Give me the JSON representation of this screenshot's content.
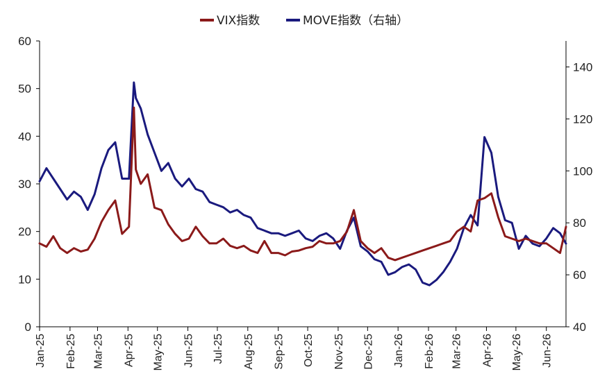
{
  "chart_data": {
    "type": "line",
    "title": "",
    "xlabel": "",
    "ylabel": "",
    "legend_position": "top-center",
    "grid": false,
    "colors": {
      "VIX指数": "#8B1A1A",
      "MOVE指数（右轴）": "#1A1A7E"
    },
    "x_categories": [
      "Jan-25",
      "Feb-25",
      "Mar-25",
      "Apr-25",
      "May-25",
      "Jun-25",
      "Jul-25",
      "Aug-25",
      "Sep-25",
      "Oct-25",
      "Nov-25",
      "Dec-25",
      "Jan-26",
      "Feb-26",
      "Mar-26",
      "Apr-26",
      "May-26",
      "Jun-26"
    ],
    "x_range": [
      "2025-01-01",
      "2026-06-21"
    ],
    "left_axis": {
      "min": 0,
      "max": 60,
      "ticks": [
        0,
        10,
        20,
        30,
        40,
        50,
        60
      ]
    },
    "right_axis": {
      "min": 40,
      "max": 150,
      "ticks": [
        40,
        60,
        80,
        100,
        120,
        140
      ]
    },
    "series": [
      {
        "name": "VIX指数",
        "axis": "left",
        "x": [
          "2025-01-01",
          "2025-01-08",
          "2025-01-15",
          "2025-01-22",
          "2025-01-29",
          "2025-02-05",
          "2025-02-12",
          "2025-02-19",
          "2025-02-26",
          "2025-03-05",
          "2025-03-12",
          "2025-03-19",
          "2025-03-26",
          "2025-04-02",
          "2025-04-07",
          "2025-04-09",
          "2025-04-14",
          "2025-04-21",
          "2025-04-28",
          "2025-05-05",
          "2025-05-12",
          "2025-05-19",
          "2025-05-26",
          "2025-06-02",
          "2025-06-09",
          "2025-06-16",
          "2025-06-23",
          "2025-06-30",
          "2025-07-07",
          "2025-07-14",
          "2025-07-21",
          "2025-07-28",
          "2025-08-04",
          "2025-08-11",
          "2025-08-18",
          "2025-08-25",
          "2025-09-01",
          "2025-09-08",
          "2025-09-15",
          "2025-09-22",
          "2025-09-29",
          "2025-10-06",
          "2025-10-13",
          "2025-10-20",
          "2025-10-27",
          "2025-11-03",
          "2025-11-10",
          "2025-11-17",
          "2025-11-24",
          "2025-12-01",
          "2025-12-08",
          "2025-12-15",
          "2025-12-22",
          "2025-12-29",
          "2026-01-05",
          "2026-01-12",
          "2026-01-19",
          "2026-01-26",
          "2026-02-02",
          "2026-02-09",
          "2026-02-16",
          "2026-02-23",
          "2026-03-02",
          "2026-03-09",
          "2026-03-16",
          "2026-03-23",
          "2026-03-30",
          "2026-04-06",
          "2026-04-13",
          "2026-04-20",
          "2026-04-27",
          "2026-05-04",
          "2026-05-11",
          "2026-05-18",
          "2026-05-25",
          "2026-06-01",
          "2026-06-08",
          "2026-06-15",
          "2026-06-21"
        ],
        "values": [
          17.5,
          16.8,
          19.0,
          16.5,
          15.5,
          16.5,
          15.8,
          16.2,
          18.5,
          22.0,
          24.5,
          26.5,
          19.5,
          21.0,
          46.0,
          33.0,
          30.0,
          32.0,
          25.0,
          24.5,
          21.5,
          19.5,
          18.0,
          18.5,
          21.0,
          19.0,
          17.5,
          17.5,
          18.5,
          17.0,
          16.5,
          17.0,
          16.0,
          15.5,
          18.0,
          15.5,
          15.5,
          15.0,
          15.8,
          16.0,
          16.5,
          16.8,
          18.0,
          17.5,
          17.5,
          18.0,
          20.0,
          24.5,
          18.0,
          16.5,
          15.5,
          16.5,
          14.5,
          14.0,
          14.5,
          15.0,
          15.5,
          16.0,
          16.5,
          17.0,
          17.5,
          18.0,
          20.0,
          21.0,
          20.0,
          26.5,
          27.0,
          28.0,
          23.0,
          19.0,
          18.5,
          18.0,
          18.5,
          18.0,
          17.5,
          17.5,
          16.5,
          15.5,
          21.0
        ]
      },
      {
        "name": "MOVE指数（右轴）",
        "axis": "right",
        "x": [
          "2025-01-01",
          "2025-01-08",
          "2025-01-15",
          "2025-01-22",
          "2025-01-29",
          "2025-02-05",
          "2025-02-12",
          "2025-02-19",
          "2025-02-26",
          "2025-03-05",
          "2025-03-12",
          "2025-03-19",
          "2025-03-26",
          "2025-04-02",
          "2025-04-07",
          "2025-04-09",
          "2025-04-14",
          "2025-04-21",
          "2025-04-28",
          "2025-05-05",
          "2025-05-12",
          "2025-05-19",
          "2025-05-26",
          "2025-06-02",
          "2025-06-09",
          "2025-06-16",
          "2025-06-23",
          "2025-06-30",
          "2025-07-07",
          "2025-07-14",
          "2025-07-21",
          "2025-07-28",
          "2025-08-04",
          "2025-08-11",
          "2025-08-18",
          "2025-08-25",
          "2025-09-01",
          "2025-09-08",
          "2025-09-15",
          "2025-09-22",
          "2025-09-29",
          "2025-10-06",
          "2025-10-13",
          "2025-10-20",
          "2025-10-27",
          "2025-11-03",
          "2025-11-10",
          "2025-11-17",
          "2025-11-24",
          "2025-12-01",
          "2025-12-08",
          "2025-12-15",
          "2025-12-22",
          "2025-12-29",
          "2026-01-05",
          "2026-01-12",
          "2026-01-19",
          "2026-01-26",
          "2026-02-02",
          "2026-02-09",
          "2026-02-16",
          "2026-02-23",
          "2026-03-02",
          "2026-03-09",
          "2026-03-16",
          "2026-03-23",
          "2026-03-30",
          "2026-04-06",
          "2026-04-13",
          "2026-04-20",
          "2026-04-27",
          "2026-05-04",
          "2026-05-11",
          "2026-05-18",
          "2026-05-25",
          "2026-06-01",
          "2026-06-08",
          "2026-06-15",
          "2026-06-21"
        ],
        "values": [
          96,
          101,
          97,
          93,
          89,
          92,
          90,
          85,
          91,
          101,
          108,
          111,
          97,
          97,
          134,
          128,
          124,
          114,
          107,
          100,
          103,
          97,
          94,
          97,
          93,
          92,
          88,
          87,
          86,
          84,
          85,
          83,
          82,
          78,
          77,
          76,
          76,
          75,
          76,
          77,
          74,
          73,
          75,
          76,
          74,
          70,
          77,
          82,
          71,
          69,
          66,
          65,
          60,
          61,
          63,
          64,
          62,
          57,
          56,
          58,
          61,
          65,
          70,
          78,
          83,
          79,
          113,
          107,
          90,
          81,
          80,
          70,
          75,
          72,
          71,
          74,
          78,
          76,
          72
        ]
      }
    ]
  },
  "legend": [
    {
      "label": "VIX指数",
      "color": "#8B1A1A"
    },
    {
      "label": "MOVE指数（右轴）",
      "color": "#1A1A7E"
    }
  ]
}
